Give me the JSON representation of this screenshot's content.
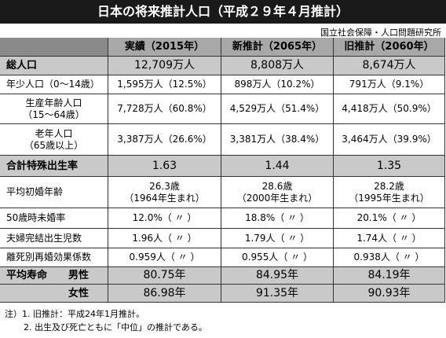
{
  "title": "日本の将来推計人口（平成２９年４月推計）",
  "source": "国立社会保障・人口問題研究所",
  "table": {
    "header": [
      "実績（2015年）",
      "新推計（2065年）",
      "旧推計（2060年）"
    ],
    "rows": [
      {
        "label": [
          "総人口"
        ],
        "cells": [
          [
            "12,709万人"
          ],
          [
            "8,808万人"
          ],
          [
            "8,674万人"
          ]
        ]
      },
      {
        "label": [
          "年少人口（0〜14歳）"
        ],
        "cells": [
          [
            "1,595万人（12.5%）"
          ],
          [
            "898万人（10.2%）"
          ],
          [
            "791万人（9.1%）"
          ]
        ]
      },
      {
        "label": [
          "生産年齢人口",
          "（15〜64歳）"
        ],
        "cells": [
          [
            "7,728万人（60.8%）"
          ],
          [
            "4,529万人（51.4%）"
          ],
          [
            "4,418万人（50.9%）"
          ]
        ]
      },
      {
        "label": [
          "老年人口",
          "（65歳以上）"
        ],
        "cells": [
          [
            "3,387万人（26.6%）"
          ],
          [
            "3,381万人（38.4%）"
          ],
          [
            "3,464万人（39.9%）"
          ]
        ]
      },
      {
        "label": [
          "合計特殊出生率"
        ],
        "cells": [
          [
            "1.63"
          ],
          [
            "1.44"
          ],
          [
            "1.35"
          ]
        ]
      },
      {
        "label": [
          "平均初婚年齢"
        ],
        "cells": [
          [
            "26.3歳",
            "（1964年生まれ）"
          ],
          [
            "28.6歳",
            "（2000年生まれ）"
          ],
          [
            "28.2歳",
            "（1995年生まれ）"
          ]
        ]
      },
      {
        "label": [
          "50歳時未婚率"
        ],
        "cells": [
          [
            "12.0%（ 〃 ）"
          ],
          [
            "18.8%（ 〃 ）"
          ],
          [
            "20.1%（ 〃 ）"
          ]
        ]
      },
      {
        "label": [
          "夫婦完結出生児数"
        ],
        "cells": [
          [
            "1.96人（ 〃 ）"
          ],
          [
            "1.79人（ 〃 ）"
          ],
          [
            "1.74人（ 〃 ）"
          ]
        ]
      },
      {
        "label": [
          "離死別再婚効果係数"
        ],
        "cells": [
          [
            "0.959人（ 〃 ）"
          ],
          [
            "0.955人（ 〃 ）"
          ],
          [
            "0.938人（ 〃 ）"
          ]
        ]
      },
      {
        "label": [
          "平均寿命",
          "男性"
        ],
        "cells": [
          [
            "80.75年"
          ],
          [
            "84.95年"
          ],
          [
            "84.19年"
          ]
        ]
      },
      {
        "label": [
          "女性"
        ],
        "cells": [
          [
            "86.98年"
          ],
          [
            "91.35年"
          ],
          [
            "90.93年"
          ]
        ]
      }
    ]
  },
  "notes": [
    "注）1. 旧推計：平成24年1月推計。",
    "2. 出生及び死亡ともに「中位」の推計である。"
  ]
}
